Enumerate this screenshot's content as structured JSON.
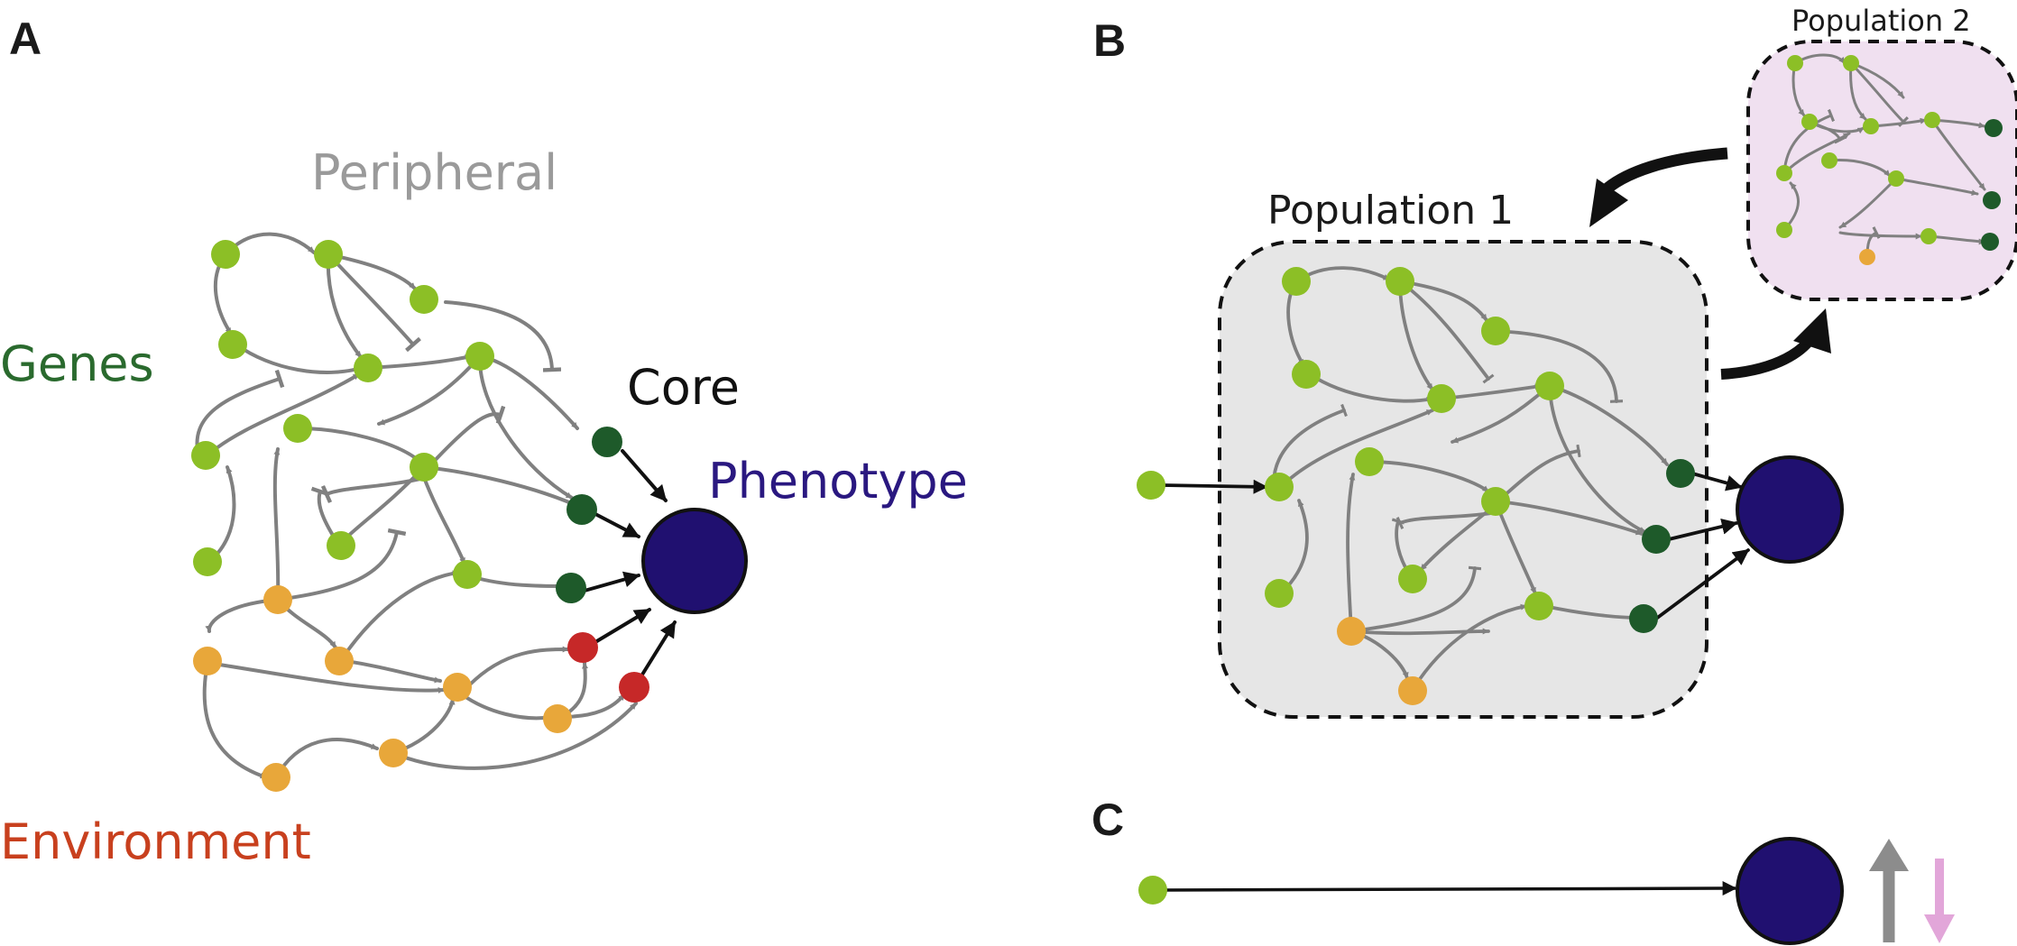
{
  "panels": {
    "a": {
      "letter": "A"
    },
    "b": {
      "letter": "B"
    },
    "c": {
      "letter": "C"
    }
  },
  "labels": {
    "peripheral": "Peripheral",
    "genes": "Genes",
    "core": "Core",
    "phenotype": "Phenotype",
    "environment": "Environment",
    "population_1": "Population 1",
    "population_2": "Population 2"
  },
  "colors": {
    "peripheral_gene": "#8cbf26",
    "core_gene": "#1e5a2a",
    "environment": "#e8a73a",
    "core_environment": "#c62828",
    "phenotype": "#201070",
    "edge": "#808080",
    "core_edge": "#1a1a1a",
    "population_1_bg": "#e6e6e6",
    "population_2_bg": "#f0e0f0",
    "up_arrow": "#8c8c8c",
    "down_arrow": "#e2a6d9",
    "label_peripheral": "#9a9a9a",
    "label_genes": "#2a6a2e",
    "label_core": "#1a1a1a",
    "label_phenotype": "#2a1880",
    "label_environment": "#c8401e"
  }
}
